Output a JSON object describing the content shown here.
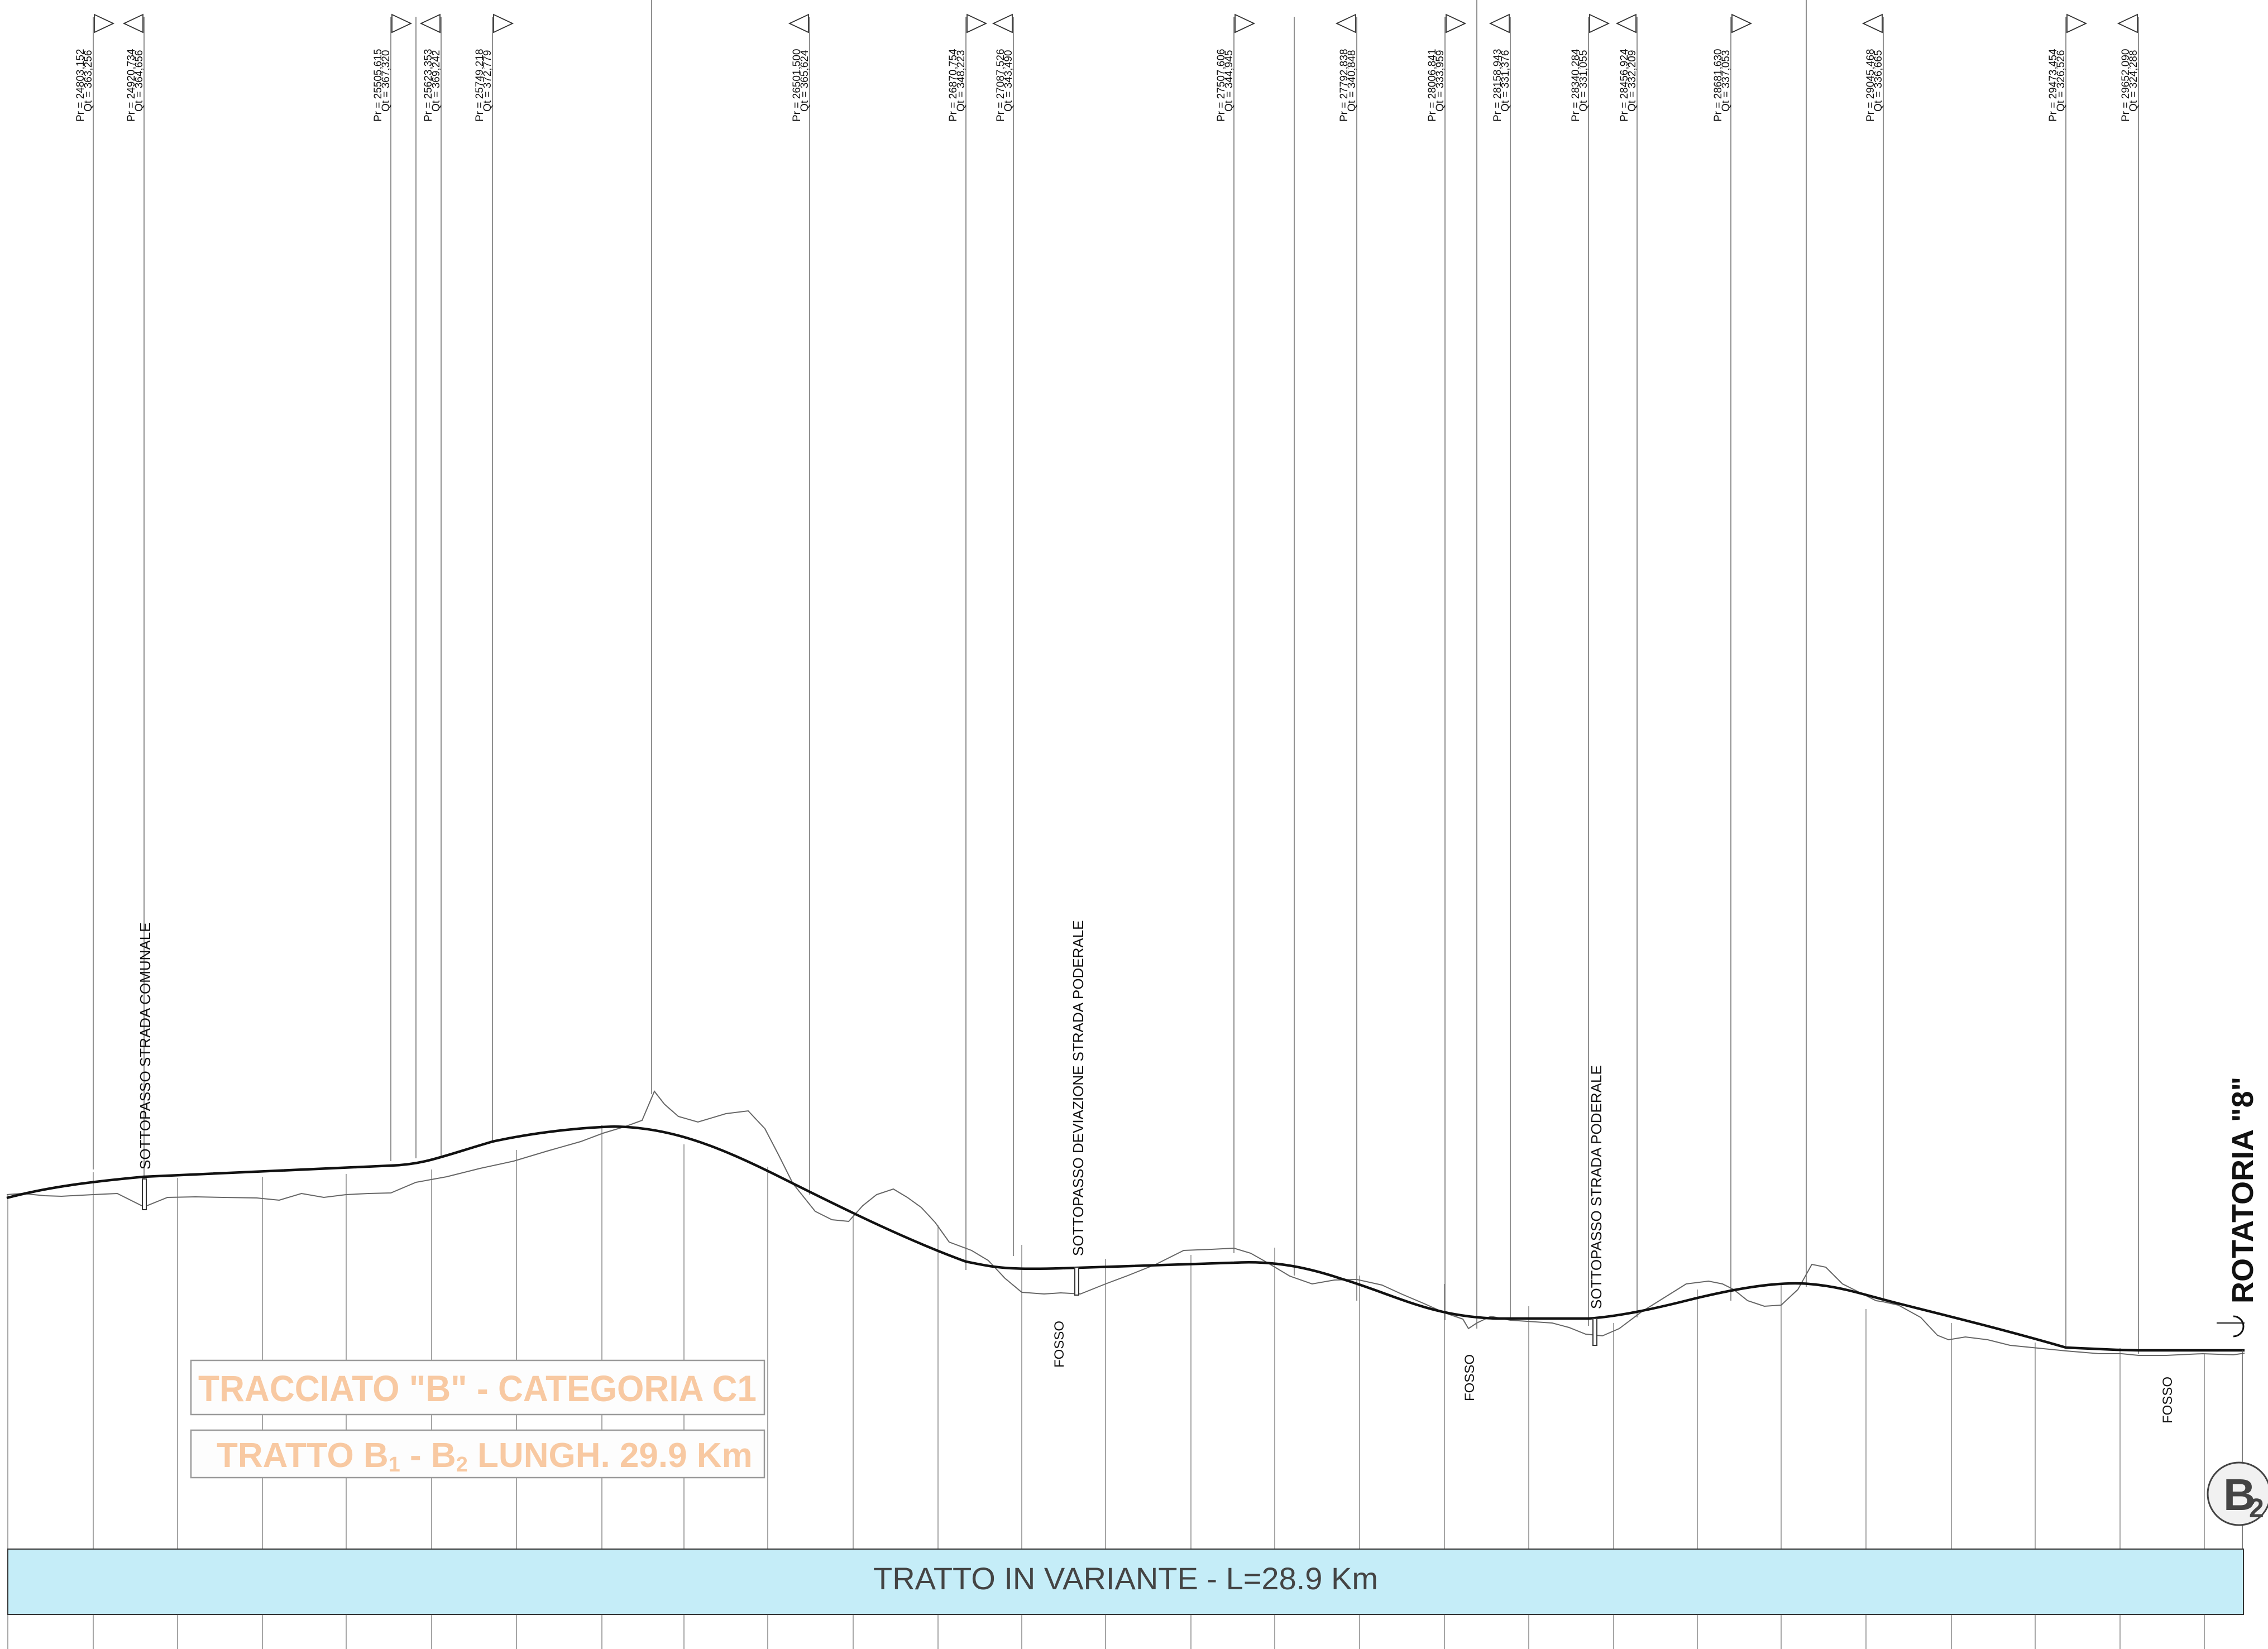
{
  "stations": [
    {
      "pr": "Pr = 24803,152",
      "qt": "Qt = 363,256",
      "tri": "right"
    },
    {
      "pr": "Pr = 24920,734",
      "qt": "Qt = 364,656",
      "tri": "left"
    },
    {
      "pr": "Pr = 25505,615",
      "qt": "Qt = 367,320",
      "tri": "right"
    },
    {
      "pr": "Pr = 25623,353",
      "qt": "Qt = 369,242",
      "tri": "left"
    },
    {
      "pr": "Pr = 25749,218",
      "qt": "Qt = 372,779",
      "tri": "right"
    },
    {
      "pr": "Pr = 26501,500",
      "qt": "Qt = 365,624",
      "tri": "left"
    },
    {
      "pr": "Pr = 26870,754",
      "qt": "Qt = 348,223",
      "tri": "right"
    },
    {
      "pr": "Pr = 27087,526",
      "qt": "Qt = 343,490",
      "tri": "left"
    },
    {
      "pr": "Pr = 27507,606",
      "qt": "Qt = 344,945",
      "tri": "right"
    },
    {
      "pr": "Pr = 27792,838",
      "qt": "Qt = 340,848",
      "tri": "left"
    },
    {
      "pr": "Pr = 28006,841",
      "qt": "Qt = 333,959",
      "tri": "right"
    },
    {
      "pr": "Pr = 28158,943",
      "qt": "Qt = 331,376",
      "tri": "left"
    },
    {
      "pr": "Pr = 28340,284",
      "qt": "Qt = 331,055",
      "tri": "right"
    },
    {
      "pr": "Pr = 28456,924",
      "qt": "Qt = 332,209",
      "tri": "left"
    },
    {
      "pr": "Pr = 28681,630",
      "qt": "Qt = 337,053",
      "tri": "right"
    },
    {
      "pr": "Pr = 29045,468",
      "qt": "Qt = 336,665",
      "tri": "left"
    },
    {
      "pr": "Pr = 29473,454",
      "qt": "Qt = 326,526",
      "tri": "right"
    },
    {
      "pr": "Pr = 29652,090",
      "qt": "Qt = 324,288",
      "tri": "left"
    }
  ],
  "features": {
    "sottopasso_comunale": "SOTTOPASSO STRADA COMUNALE",
    "sottopasso_deviazione": "SOTTOPASSO DEVIAZIONE STRADA PODERALE",
    "sottopasso_poderale": "SOTTOPASSO STRADA PODERALE",
    "fosso_1": "FOSSO",
    "fosso_2": "FOSSO",
    "fosso_3": "FOSSO",
    "rotatoria": "ROTATORIA \"8\""
  },
  "title_box": {
    "line1": "TRACCIATO \"B\" - CATEGORIA C1",
    "line2_a": "TRATTO B",
    "line2_a_sub": "1",
    "line2_b": "  - B",
    "line2_b_sub": "2",
    "line2_c": "  LUNGH. 29.9 Km",
    "text_color": "#f8c9a2"
  },
  "band": {
    "label": "TRATTO IN VARIANTE - L=28.9 Km",
    "color": "#c5edf8"
  },
  "end_marker": {
    "letter": "B",
    "subscript": "2"
  },
  "legend_icons": [
    "station-triangle-icon",
    "underpass-marker-icon",
    "roundabout-end-icon"
  ]
}
